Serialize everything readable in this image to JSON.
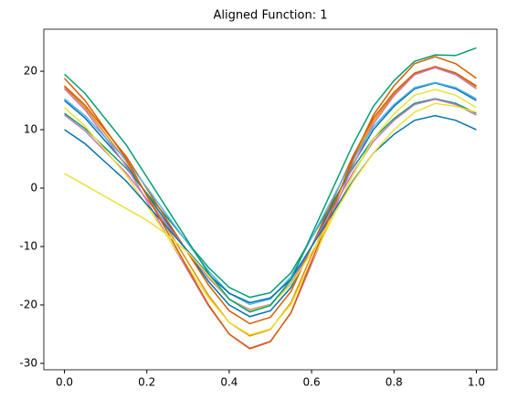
{
  "chart_data": {
    "type": "line",
    "title": "Aligned Function: 1",
    "x": [
      0,
      0.05,
      0.1,
      0.15,
      0.2,
      0.25,
      0.3,
      0.35,
      0.4,
      0.45,
      0.5,
      0.55,
      0.6,
      0.65,
      0.7,
      0.75,
      0.8,
      0.85,
      0.9,
      0.95,
      1
    ],
    "xlim": [
      -0.05,
      1.05
    ],
    "xticks": [
      {
        "value": 0,
        "label": "0.0"
      },
      0.2,
      0.4,
      0.6,
      0.8,
      {
        "value": 1,
        "label": "1.0"
      }
    ],
    "ylim": [
      -31.1,
      27.2
    ],
    "yticks": [
      -30,
      -20,
      -10,
      0,
      10,
      20
    ],
    "grid": false,
    "series": [
      {
        "color": "#0173b2",
        "values": [
          15,
          12,
          8,
          4,
          -1,
          -6,
          -11,
          -16,
          -20,
          -22,
          -21,
          -17,
          -10,
          -3,
          4,
          10,
          14,
          17,
          18,
          17,
          15
        ]
      },
      {
        "color": "#de8f05",
        "values": [
          17.3,
          13.8,
          9.2,
          4.6,
          -1.2,
          -6.9,
          -12.7,
          -18.4,
          -23,
          -25.3,
          -24.2,
          -19.6,
          -11.5,
          -3.5,
          4.6,
          11.5,
          16.1,
          19.6,
          20.7,
          19.6,
          17.3
        ]
      },
      {
        "color": "#029e73",
        "values": [
          12.8,
          10.2,
          6.8,
          3.4,
          -0.9,
          -5.1,
          -9.4,
          -13.6,
          -17,
          -18.7,
          -17.9,
          -14.5,
          -8.5,
          -2.6,
          3.4,
          8.5,
          11.9,
          14.5,
          15.3,
          14.5,
          12.8
        ]
      },
      {
        "color": "#d55e00",
        "values": [
          17.5,
          14.2,
          9.8,
          5.4,
          -0.1,
          -5.6,
          -11.1,
          -16.6,
          -21,
          -23.2,
          -22.1,
          -17.7,
          -10,
          -2.3,
          5.4,
          12,
          16.4,
          19.7,
          20.8,
          19.7,
          17.5
        ]
      },
      {
        "color": "#cc78bc",
        "values": [
          12.5,
          9.8,
          6.2,
          2.6,
          -1.9,
          -6.4,
          -10.9,
          -15.4,
          -19,
          -20.8,
          -19.9,
          -16.3,
          -10,
          -3.7,
          2.6,
          8,
          11.6,
          14.3,
          15.2,
          14.3,
          12.5
        ]
      },
      {
        "color": "#cc78bc",
        "values": [
          17,
          13.4,
          8.6,
          3.8,
          -2.2,
          -8.2,
          -14.2,
          -20.2,
          -25,
          -27.4,
          -26.2,
          -21.4,
          -13,
          -4.6,
          3.8,
          11,
          15.8,
          19.4,
          20.6,
          19.4,
          17
        ]
      },
      {
        "color": "#56b4e9",
        "values": [
          15.3,
          12.4,
          8.6,
          4.8,
          0.1,
          -4.7,
          -9.5,
          -14.2,
          -18,
          -19.9,
          -19,
          -15.2,
          -8.5,
          -1.9,
          4.8,
          10.5,
          14.3,
          17.2,
          18.1,
          17.2,
          15.3
        ]
      },
      {
        "color": "#ece133",
        "values": [
          13.8,
          10.6,
          6.4,
          2.2,
          -3,
          -8.3,
          -13.6,
          -18.8,
          -23,
          -25.1,
          -24.1,
          -19.9,
          -12.5,
          -5.2,
          2.2,
          8.5,
          12.7,
          15.9,
          16.9,
          15.9,
          13.8
        ]
      },
      {
        "color": "#0173b2",
        "values": [
          10,
          7.6,
          4.4,
          1.2,
          -2.8,
          -6.8,
          -10.8,
          -14.8,
          -18,
          -19.6,
          -18.8,
          -15.6,
          -10,
          -4.4,
          1.2,
          6,
          9.2,
          11.6,
          12.4,
          11.6,
          10
        ]
      },
      {
        "color": "#d55e00",
        "values": [
          18.8,
          15,
          10,
          5,
          -1.3,
          -7.5,
          -13.8,
          -20,
          -25,
          -27.5,
          -26.3,
          -21.3,
          -12.5,
          -3.8,
          5,
          12.5,
          17.5,
          21.3,
          22.5,
          21.3,
          18.8
        ]
      },
      {
        "color": "#ece133",
        "values": [
          2.5,
          0.5,
          -1.5,
          -3.5,
          -5.5,
          -8,
          -11,
          -15,
          -19,
          -21,
          -20,
          -16.5,
          -11,
          -5,
          1,
          6,
          10,
          13,
          14.5,
          14,
          13
        ]
      },
      {
        "color": "#029e73",
        "values": [
          19.5,
          16.2,
          11.8,
          7.4,
          1.9,
          -3.6,
          -9.1,
          -14.6,
          -19,
          -21.2,
          -20.1,
          -15.7,
          -8,
          -0.3,
          7.4,
          14,
          18.4,
          21.7,
          22.8,
          22.7,
          24
        ]
      }
    ]
  }
}
